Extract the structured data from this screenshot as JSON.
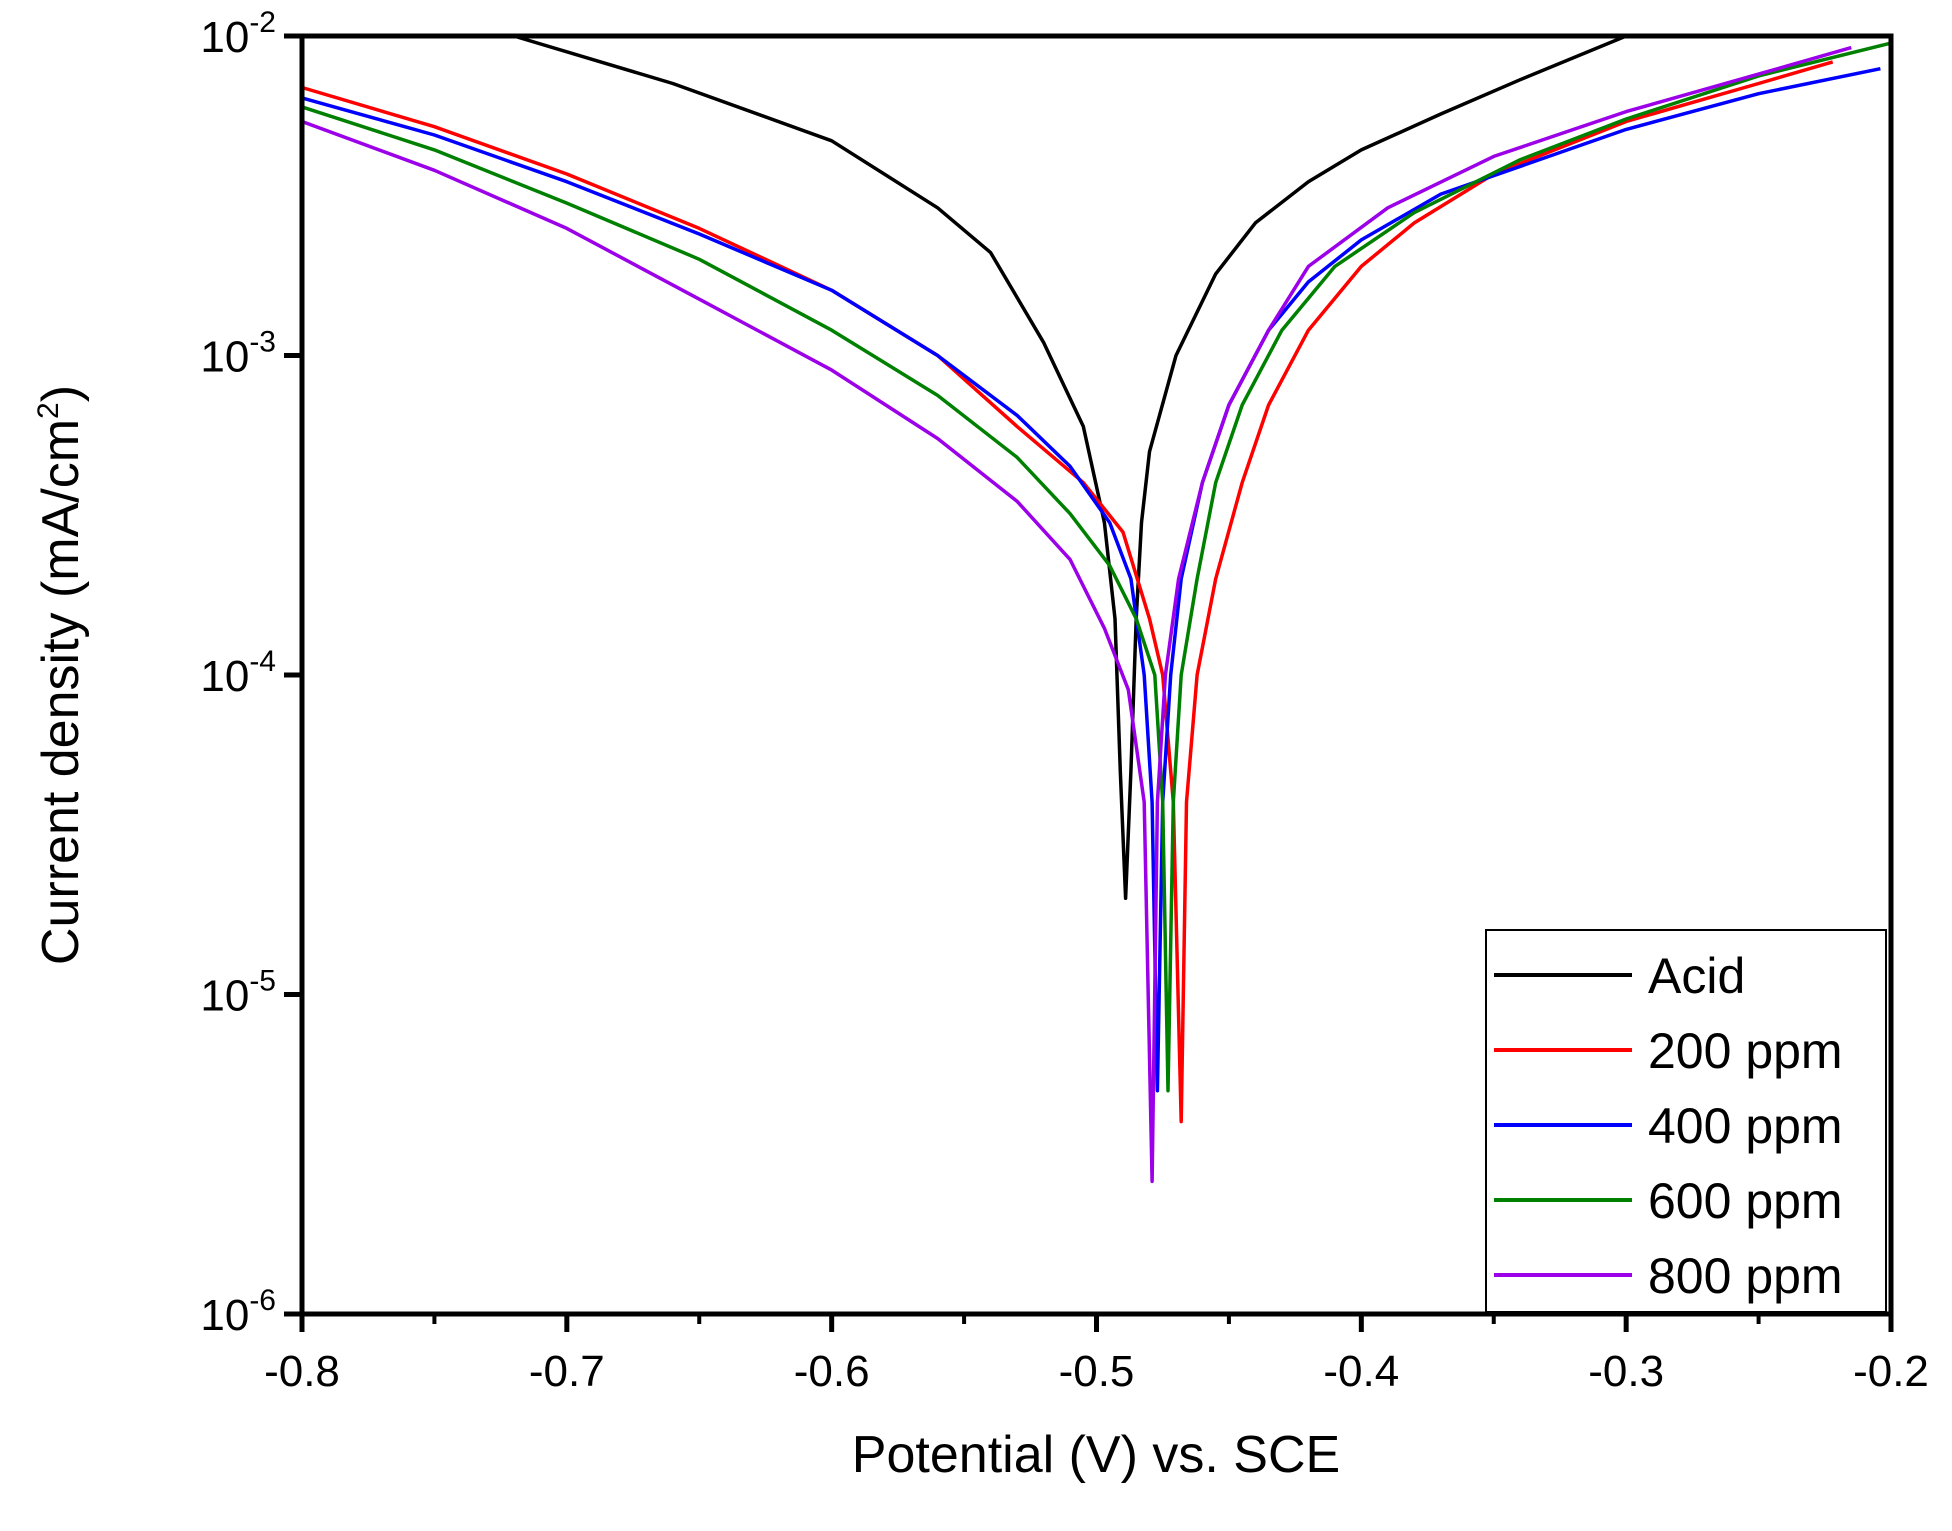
{
  "chart_data": {
    "type": "line",
    "title": "",
    "xlabel": "Potential (V) vs. SCE",
    "ylabel": {
      "prefix": "Current density (mA/cm",
      "sup": "2",
      "suffix": ")"
    },
    "xlim": [
      -0.8,
      -0.2
    ],
    "ylim": [
      1e-06,
      0.01
    ],
    "yscale": "log",
    "x_ticks": [
      {
        "value": -0.8,
        "label": "-0.8"
      },
      {
        "value": -0.7,
        "label": "-0.7"
      },
      {
        "value": -0.6,
        "label": "-0.6"
      },
      {
        "value": -0.5,
        "label": "-0.5"
      },
      {
        "value": -0.4,
        "label": "-0.4"
      },
      {
        "value": -0.3,
        "label": "-0.3"
      },
      {
        "value": -0.2,
        "label": "-0.2"
      }
    ],
    "y_ticks": [
      {
        "value": 1e-06,
        "base": "10",
        "exp": "-6"
      },
      {
        "value": 1e-05,
        "base": "10",
        "exp": "-5"
      },
      {
        "value": 0.0001,
        "base": "10",
        "exp": "-4"
      },
      {
        "value": 0.001,
        "base": "10",
        "exp": "-3"
      },
      {
        "value": 0.01,
        "base": "10",
        "exp": "-2"
      }
    ],
    "legend_position": "bottom-right",
    "grid": false,
    "series": [
      {
        "name": "Acid",
        "color": "#000000",
        "points": [
          [
            -0.72,
            0.01
          ],
          [
            -0.66,
            0.0071
          ],
          [
            -0.6,
            0.0047
          ],
          [
            -0.56,
            0.0029
          ],
          [
            -0.54,
            0.0021
          ],
          [
            -0.52,
            0.0011
          ],
          [
            -0.505,
            0.0006
          ],
          [
            -0.497,
            0.0003
          ],
          [
            -0.493,
            0.00015
          ],
          [
            -0.491,
            5e-05
          ],
          [
            -0.489,
            2e-05
          ],
          [
            -0.487,
            5e-05
          ],
          [
            -0.485,
            0.00015
          ],
          [
            -0.483,
            0.0003
          ],
          [
            -0.48,
            0.0005
          ],
          [
            -0.47,
            0.001
          ],
          [
            -0.455,
            0.0018
          ],
          [
            -0.44,
            0.0026
          ],
          [
            -0.42,
            0.0035
          ],
          [
            -0.4,
            0.0044
          ],
          [
            -0.37,
            0.0057
          ],
          [
            -0.34,
            0.0073
          ],
          [
            -0.3,
            0.01
          ]
        ]
      },
      {
        "name": "200 ppm",
        "color": "#ff0000",
        "points": [
          [
            -0.8,
            0.0069
          ],
          [
            -0.75,
            0.0052
          ],
          [
            -0.7,
            0.0037
          ],
          [
            -0.65,
            0.0025
          ],
          [
            -0.6,
            0.0016
          ],
          [
            -0.56,
            0.001
          ],
          [
            -0.53,
            0.0006
          ],
          [
            -0.505,
            0.0004
          ],
          [
            -0.49,
            0.00028
          ],
          [
            -0.48,
            0.00015
          ],
          [
            -0.475,
            0.0001
          ],
          [
            -0.471,
            4e-05
          ],
          [
            -0.468,
            4e-06
          ],
          [
            -0.466,
            4e-05
          ],
          [
            -0.462,
            0.0001
          ],
          [
            -0.455,
            0.0002
          ],
          [
            -0.445,
            0.0004
          ],
          [
            -0.435,
            0.0007
          ],
          [
            -0.42,
            0.0012
          ],
          [
            -0.4,
            0.0019
          ],
          [
            -0.38,
            0.0026
          ],
          [
            -0.35,
            0.0037
          ],
          [
            -0.3,
            0.0054
          ],
          [
            -0.25,
            0.0071
          ],
          [
            -0.222,
            0.0083
          ]
        ]
      },
      {
        "name": "400 ppm",
        "color": "#0000ff",
        "points": [
          [
            -0.8,
            0.0064
          ],
          [
            -0.75,
            0.0049
          ],
          [
            -0.7,
            0.0035
          ],
          [
            -0.65,
            0.0024
          ],
          [
            -0.6,
            0.0016
          ],
          [
            -0.56,
            0.001
          ],
          [
            -0.53,
            0.00065
          ],
          [
            -0.51,
            0.00045
          ],
          [
            -0.495,
            0.0003
          ],
          [
            -0.487,
            0.0002
          ],
          [
            -0.482,
            0.0001
          ],
          [
            -0.479,
            4e-05
          ],
          [
            -0.477,
            5e-06
          ],
          [
            -0.475,
            4e-05
          ],
          [
            -0.472,
            0.0001
          ],
          [
            -0.468,
            0.0002
          ],
          [
            -0.46,
            0.0004
          ],
          [
            -0.45,
            0.0007
          ],
          [
            -0.435,
            0.0012
          ],
          [
            -0.42,
            0.0017
          ],
          [
            -0.4,
            0.0023
          ],
          [
            -0.37,
            0.0032
          ],
          [
            -0.3,
            0.0051
          ],
          [
            -0.25,
            0.0066
          ],
          [
            -0.204,
            0.0079
          ]
        ]
      },
      {
        "name": "600 ppm",
        "color": "#008000",
        "points": [
          [
            -0.8,
            0.006
          ],
          [
            -0.75,
            0.0044
          ],
          [
            -0.7,
            0.003
          ],
          [
            -0.65,
            0.002
          ],
          [
            -0.6,
            0.0012
          ],
          [
            -0.56,
            0.00075
          ],
          [
            -0.53,
            0.00048
          ],
          [
            -0.51,
            0.00032
          ],
          [
            -0.495,
            0.00022
          ],
          [
            -0.485,
            0.00015
          ],
          [
            -0.478,
            0.0001
          ],
          [
            -0.475,
            4e-05
          ],
          [
            -0.473,
            5e-06
          ],
          [
            -0.471,
            4e-05
          ],
          [
            -0.468,
            0.0001
          ],
          [
            -0.462,
            0.0002
          ],
          [
            -0.455,
            0.0004
          ],
          [
            -0.445,
            0.0007
          ],
          [
            -0.43,
            0.0012
          ],
          [
            -0.41,
            0.0019
          ],
          [
            -0.38,
            0.0028
          ],
          [
            -0.34,
            0.0041
          ],
          [
            -0.3,
            0.0055
          ],
          [
            -0.25,
            0.0075
          ],
          [
            -0.2,
            0.0095
          ]
        ]
      },
      {
        "name": "800 ppm",
        "color": "#9b00e8",
        "points": [
          [
            -0.8,
            0.0054
          ],
          [
            -0.75,
            0.0038
          ],
          [
            -0.7,
            0.0025
          ],
          [
            -0.65,
            0.0015
          ],
          [
            -0.6,
            0.0009
          ],
          [
            -0.56,
            0.00055
          ],
          [
            -0.53,
            0.00035
          ],
          [
            -0.51,
            0.00023
          ],
          [
            -0.497,
            0.00014
          ],
          [
            -0.488,
            9e-05
          ],
          [
            -0.482,
            4e-05
          ],
          [
            -0.479,
            2.6e-06
          ],
          [
            -0.477,
            4e-05
          ],
          [
            -0.474,
            0.0001
          ],
          [
            -0.469,
            0.0002
          ],
          [
            -0.46,
            0.0004
          ],
          [
            -0.45,
            0.0007
          ],
          [
            -0.435,
            0.0012
          ],
          [
            -0.42,
            0.0019
          ],
          [
            -0.39,
            0.0029
          ],
          [
            -0.35,
            0.0042
          ],
          [
            -0.3,
            0.0058
          ],
          [
            -0.25,
            0.0076
          ],
          [
            -0.215,
            0.0092
          ]
        ]
      }
    ]
  }
}
